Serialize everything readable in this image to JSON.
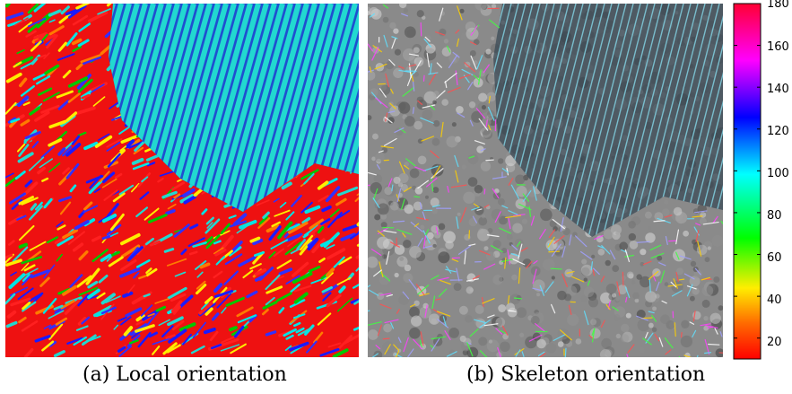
{
  "figure": {
    "panels": [
      {
        "id": "a",
        "caption": "(a) Local orientation",
        "content": "orientation-map"
      },
      {
        "id": "b",
        "caption": "(b) Skeleton orientation",
        "content": "skeleton-overlay"
      }
    ],
    "colorbar": {
      "ticks": [
        "180",
        "160",
        "140",
        "120",
        "100",
        "80",
        "60",
        "40",
        "20"
      ],
      "range": [
        10,
        180
      ],
      "colormap": "hsv",
      "colors": [
        "#ff0000",
        "#ff8000",
        "#ffff00",
        "#00ff00",
        "#00ffff",
        "#0000ff",
        "#ff00ff",
        "#ff0033"
      ]
    },
    "colors": {
      "red_region": "#ee1111",
      "cyan_region": "#22d8d0",
      "gray_background": "#8a8a8a",
      "dark_region": "#3a4a55"
    }
  }
}
